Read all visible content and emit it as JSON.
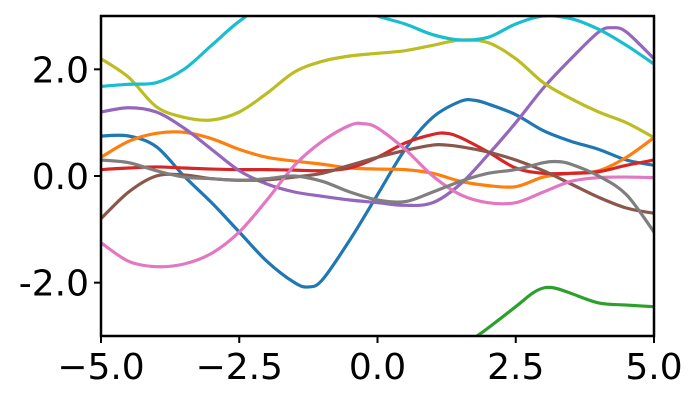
{
  "chart_data": {
    "type": "line",
    "title": "",
    "xlabel": "",
    "ylabel": "",
    "xlim": [
      -5.0,
      5.0
    ],
    "ylim": [
      -3.0,
      3.0
    ],
    "grid": false,
    "legend": "none",
    "xticks": [
      -5.0,
      -2.5,
      0.0,
      2.5,
      5.0
    ],
    "xtick_labels": [
      "−5.0",
      "−2.5",
      "0.0",
      "2.5",
      "5.0"
    ],
    "yticks": [
      -2.0,
      0.0,
      2.0
    ],
    "ytick_labels": [
      "-2.0",
      "0.0",
      "2.0"
    ],
    "series": [
      {
        "color": "#1f77b4",
        "x": [
          -5.0,
          -4.5,
          -4.0,
          -3.5,
          -3.0,
          -2.5,
          -2.0,
          -1.5,
          -1.25,
          -1.0,
          -0.5,
          0.0,
          0.5,
          1.0,
          1.5,
          1.75,
          2.0,
          2.5,
          3.0,
          3.5,
          4.0,
          4.5,
          5.0
        ],
        "y": [
          0.75,
          0.75,
          0.55,
          0.0,
          -0.5,
          -1.05,
          -1.6,
          -2.0,
          -2.08,
          -1.95,
          -1.2,
          -0.35,
          0.5,
          1.1,
          1.4,
          1.42,
          1.35,
          1.15,
          0.85,
          0.65,
          0.5,
          0.3,
          0.2
        ]
      },
      {
        "color": "#ff7f0e",
        "x": [
          -5.0,
          -4.5,
          -4.0,
          -3.5,
          -3.0,
          -2.5,
          -2.0,
          -1.5,
          -1.0,
          -0.5,
          0.0,
          0.5,
          1.0,
          1.5,
          2.0,
          2.5,
          3.0,
          3.5,
          4.0,
          4.5,
          5.0
        ],
        "y": [
          0.35,
          0.65,
          0.8,
          0.82,
          0.7,
          0.5,
          0.35,
          0.28,
          0.22,
          0.15,
          0.13,
          0.12,
          0.05,
          -0.1,
          -0.18,
          -0.2,
          -0.02,
          0.05,
          0.1,
          0.35,
          0.72
        ]
      },
      {
        "color": "#2ca02c",
        "x": [
          1.8,
          2.0,
          2.5,
          2.8,
          3.0,
          3.2,
          3.5,
          4.0,
          4.5,
          5.0
        ],
        "y": [
          -3.0,
          -2.85,
          -2.45,
          -2.2,
          -2.1,
          -2.1,
          -2.2,
          -2.38,
          -2.42,
          -2.45
        ]
      },
      {
        "color": "#d62728",
        "x": [
          -5.0,
          -4.5,
          -4.0,
          -3.5,
          -3.0,
          -2.5,
          -2.0,
          -1.5,
          -1.0,
          -0.5,
          0.0,
          0.5,
          1.0,
          1.25,
          1.5,
          2.0,
          2.5,
          3.0,
          3.5,
          4.0,
          4.5,
          5.0
        ],
        "y": [
          0.12,
          0.15,
          0.17,
          0.15,
          0.13,
          0.12,
          0.12,
          0.11,
          0.1,
          0.15,
          0.35,
          0.62,
          0.78,
          0.8,
          0.72,
          0.45,
          0.15,
          0.05,
          0.05,
          0.08,
          0.2,
          0.3
        ]
      },
      {
        "color": "#9467bd",
        "x": [
          -5.0,
          -4.5,
          -4.0,
          -3.5,
          -3.0,
          -2.5,
          -2.0,
          -1.5,
          -1.0,
          -0.5,
          0.0,
          0.5,
          1.0,
          1.5,
          2.0,
          2.5,
          3.0,
          3.5,
          4.0,
          4.25,
          4.5,
          5.0
        ],
        "y": [
          1.2,
          1.28,
          1.2,
          0.9,
          0.5,
          0.1,
          -0.15,
          -0.3,
          -0.38,
          -0.45,
          -0.5,
          -0.55,
          -0.5,
          -0.15,
          0.4,
          1.0,
          1.65,
          2.2,
          2.7,
          2.78,
          2.7,
          2.2
        ]
      },
      {
        "color": "#8c564b",
        "x": [
          -5.0,
          -4.5,
          -4.0,
          -3.5,
          -3.0,
          -2.5,
          -2.0,
          -1.5,
          -1.0,
          -0.5,
          0.0,
          0.5,
          1.0,
          1.25,
          1.5,
          2.0,
          2.5,
          3.0,
          3.5,
          4.0,
          4.5,
          5.0
        ],
        "y": [
          -0.8,
          -0.3,
          0.0,
          0.02,
          -0.05,
          -0.08,
          -0.07,
          -0.02,
          0.05,
          0.2,
          0.35,
          0.48,
          0.58,
          0.58,
          0.55,
          0.45,
          0.3,
          0.1,
          -0.15,
          -0.4,
          -0.6,
          -0.7
        ]
      },
      {
        "color": "#e377c2",
        "x": [
          -5.0,
          -4.5,
          -4.0,
          -3.5,
          -3.0,
          -2.5,
          -2.0,
          -1.5,
          -1.0,
          -0.5,
          -0.25,
          0.0,
          0.5,
          1.0,
          1.5,
          2.0,
          2.5,
          3.0,
          3.5,
          4.0,
          4.5,
          5.0
        ],
        "y": [
          -1.25,
          -1.6,
          -1.7,
          -1.65,
          -1.45,
          -1.05,
          -0.45,
          0.2,
          0.65,
          0.95,
          0.98,
          0.9,
          0.5,
          0.0,
          -0.35,
          -0.5,
          -0.5,
          -0.3,
          -0.1,
          -0.03,
          -0.02,
          -0.03
        ]
      },
      {
        "color": "#7f7f7f",
        "x": [
          -5.0,
          -4.5,
          -4.0,
          -3.5,
          -3.0,
          -2.5,
          -2.0,
          -1.5,
          -1.0,
          -0.5,
          0.0,
          0.5,
          1.0,
          1.5,
          2.0,
          2.5,
          3.0,
          3.25,
          3.5,
          4.0,
          4.5,
          5.0
        ],
        "y": [
          0.3,
          0.25,
          0.1,
          -0.02,
          -0.05,
          -0.08,
          -0.05,
          0.0,
          -0.1,
          -0.3,
          -0.45,
          -0.48,
          -0.3,
          -0.1,
          0.05,
          0.12,
          0.25,
          0.27,
          0.22,
          0.0,
          -0.35,
          -1.05
        ]
      },
      {
        "color": "#bcbd22",
        "x": [
          -5.0,
          -4.5,
          -4.0,
          -3.5,
          -3.0,
          -2.5,
          -2.0,
          -1.5,
          -1.0,
          -0.5,
          0.0,
          0.5,
          1.0,
          1.5,
          2.0,
          2.5,
          3.0,
          3.5,
          4.0,
          4.5,
          5.0
        ],
        "y": [
          2.2,
          1.85,
          1.3,
          1.1,
          1.05,
          1.2,
          1.55,
          1.95,
          2.15,
          2.25,
          2.3,
          2.35,
          2.45,
          2.55,
          2.5,
          2.2,
          1.75,
          1.45,
          1.2,
          1.0,
          0.72
        ]
      },
      {
        "color": "#17becf",
        "x": [
          -5.0,
          -4.5,
          -4.0,
          -3.5,
          -3.0,
          -2.5,
          -2.0,
          -1.0,
          -0.5,
          0.0,
          0.5,
          1.0,
          1.5,
          2.0,
          2.5,
          3.0,
          3.5,
          4.0,
          4.5,
          5.0
        ],
        "y": [
          1.68,
          1.72,
          1.75,
          2.0,
          2.45,
          2.9,
          3.2,
          3.3,
          3.2,
          3.0,
          2.85,
          2.65,
          2.55,
          2.6,
          2.85,
          3.0,
          2.95,
          2.75,
          2.45,
          2.1
        ]
      }
    ]
  }
}
